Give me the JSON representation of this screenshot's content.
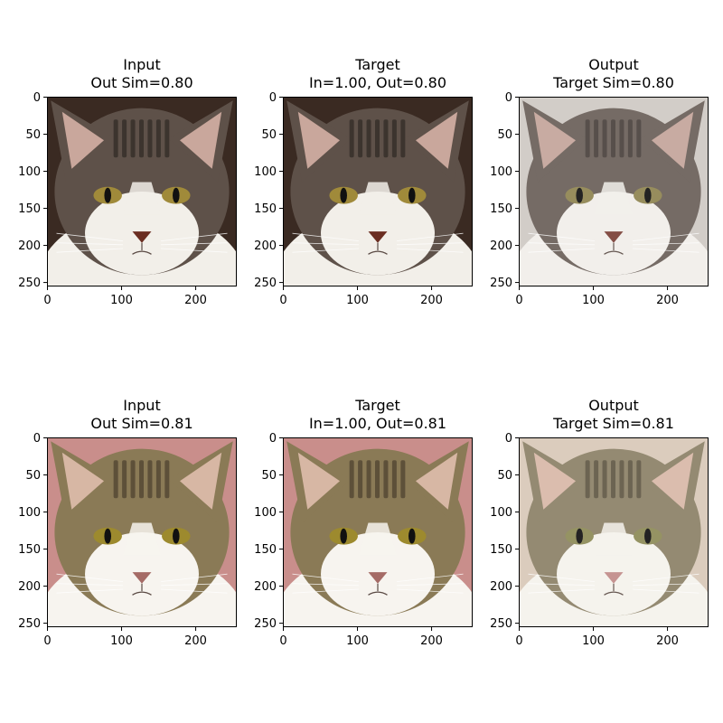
{
  "figure": {
    "rows": [
      {
        "panels": [
          {
            "title_line1": "Input",
            "title_line2": "Out Sim=0.80",
            "image": "cat-1-input",
            "palette": "tabby-dark"
          },
          {
            "title_line1": "Target",
            "title_line2": "In=1.00, Out=0.80",
            "image": "cat-1-target",
            "palette": "tabby-dark"
          },
          {
            "title_line1": "Output",
            "title_line2": "Target Sim=0.80",
            "image": "cat-1-output",
            "palette": "tabby-soft"
          }
        ]
      },
      {
        "panels": [
          {
            "title_line1": "Input",
            "title_line2": "Out Sim=0.81",
            "image": "cat-2-input",
            "palette": "kitten-warm"
          },
          {
            "title_line1": "Target",
            "title_line2": "In=1.00, Out=0.81",
            "image": "cat-2-target",
            "palette": "kitten-warm"
          },
          {
            "title_line1": "Output",
            "title_line2": "Target Sim=0.81",
            "image": "cat-2-output",
            "palette": "kitten-soft"
          }
        ]
      }
    ],
    "axes": {
      "x_ticks": [
        0,
        100,
        200
      ],
      "y_ticks": [
        0,
        50,
        100,
        150,
        200,
        250
      ],
      "x_range": [
        0,
        256
      ],
      "y_range": [
        0,
        256
      ]
    },
    "palettes": {
      "tabby-dark": {
        "bg": "#3a2a22",
        "fur": "#5e5149",
        "dark": "#2e2824",
        "light": "#f2efe9",
        "ear": "#c9a79c",
        "eye": "#a08a3a",
        "nose": "#6b2e22"
      },
      "tabby-soft": {
        "bg": "#cfc9c4",
        "fur": "#6a5f58",
        "dark": "#3c3430",
        "light": "#f1eeea",
        "ear": "#c4a49b",
        "eye": "#8f8450",
        "nose": "#7a3f36"
      },
      "kitten-warm": {
        "bg": "#c98e8b",
        "fur": "#8a7a56",
        "dark": "#4a3f2d",
        "light": "#f7f4ef",
        "ear": "#d7b7a4",
        "eye": "#9d8a2e",
        "nose": "#a56b66"
      },
      "kitten-soft": {
        "bg": "#d8c8b8",
        "fur": "#8b8066",
        "dark": "#4e4636",
        "light": "#f5f2ec",
        "ear": "#d8b8a8",
        "eye": "#8c8a56",
        "nose": "#c08a88"
      }
    }
  }
}
